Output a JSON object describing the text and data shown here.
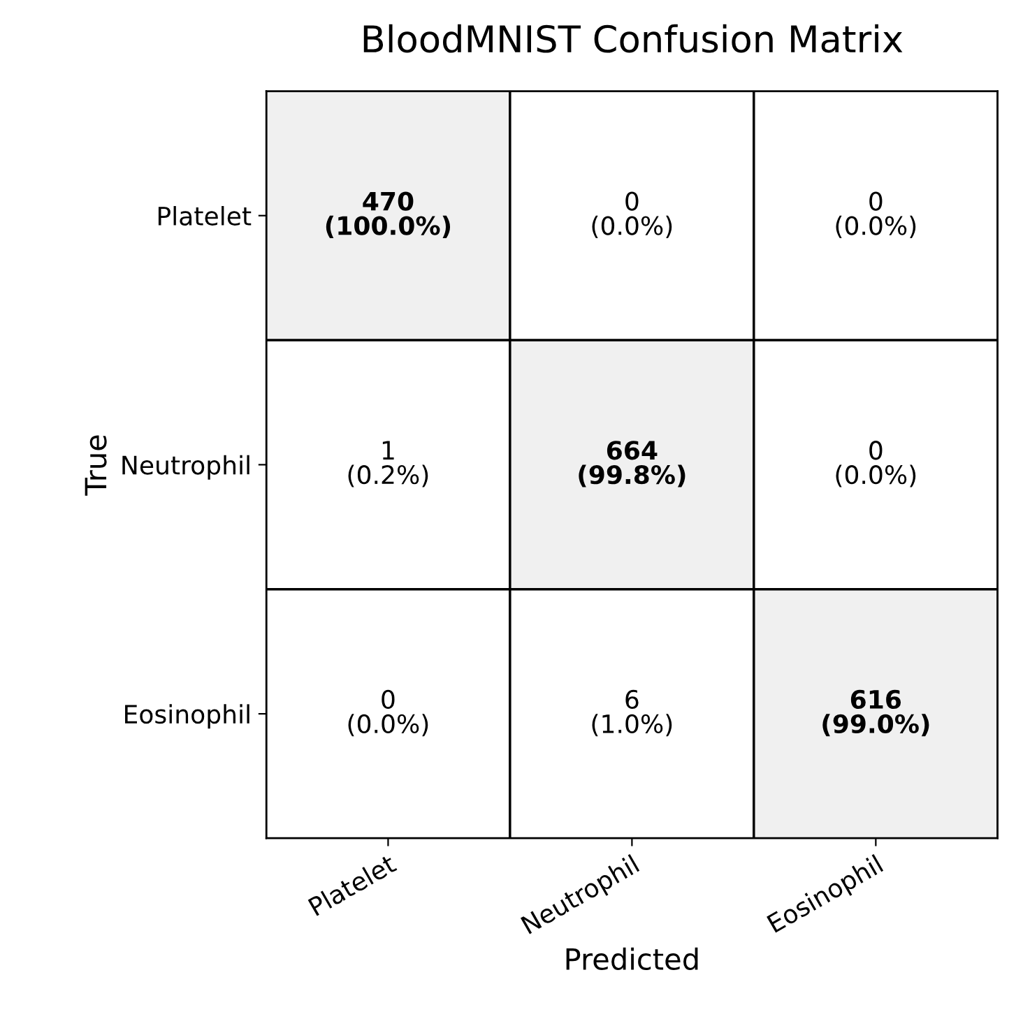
{
  "chart_data": {
    "type": "heatmap",
    "title": "BloodMNIST Confusion Matrix",
    "xlabel": "Predicted",
    "ylabel": "True",
    "categories": [
      "Platelet",
      "Neutrophil",
      "Eosinophil"
    ],
    "y_categories": [
      "Platelet",
      "Neutrophil",
      "Eosinophil"
    ],
    "cells": [
      [
        470,
        0,
        0
      ],
      [
        1,
        664,
        0
      ],
      [
        0,
        6,
        616
      ]
    ],
    "data_labels": true,
    "annotations": [
      "(100.0%)",
      "(0.0%)",
      "(0.0%)",
      "(0.2%)",
      "(99.8%)",
      "(0.0%)",
      "(0.0%)",
      "(1.0%)",
      "(99.0%)"
    ],
    "colors": [
      "#ffffff",
      "#f0f0f0"
    ]
  }
}
